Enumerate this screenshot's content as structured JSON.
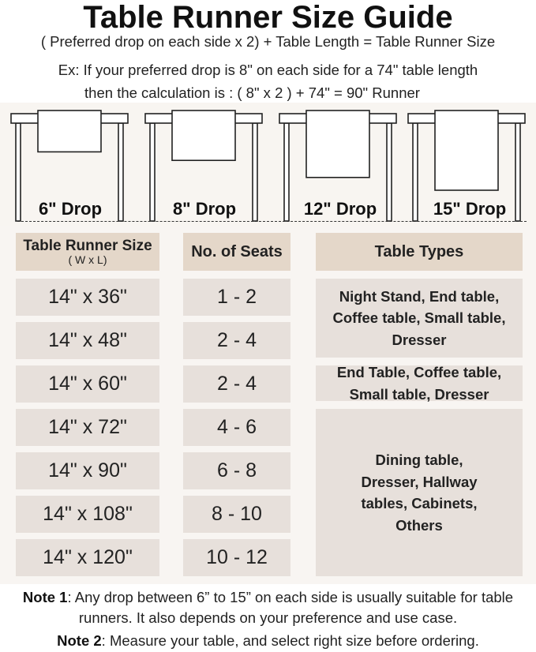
{
  "title": "Table Runner Size Guide",
  "formula": "( Preferred drop on each side x 2) + Table Length = Table Runner Size",
  "example_line1": "Ex: If your preferred drop is 8\" on each side for a 74\" table length",
  "example_line2": "then the calculation is : ( 8\" x 2 ) + 74\" = 90\" Runner",
  "drops": [
    {
      "label": "6\" Drop",
      "inches": 6
    },
    {
      "label": "8\" Drop",
      "inches": 8
    },
    {
      "label": "12\" Drop",
      "inches": 12
    },
    {
      "label": "15\" Drop",
      "inches": 15
    }
  ],
  "table": {
    "headers": {
      "size": "Table Runner Size",
      "size_sub": "( W x L)",
      "seats": "No. of Seats",
      "types": "Table Types"
    },
    "rows": [
      {
        "size": "14\" x 36\"",
        "seats": "1 - 2"
      },
      {
        "size": "14\" x 48\"",
        "seats": "2 - 4"
      },
      {
        "size": "14\" x 60\"",
        "seats": "2 - 4"
      },
      {
        "size": "14\" x 72\"",
        "seats": "4 - 6"
      },
      {
        "size": "14\" x 90\"",
        "seats": "6 - 8"
      },
      {
        "size": "14\" x 108\"",
        "seats": "8 - 10"
      },
      {
        "size": "14\" x 120\"",
        "seats": "10 - 12"
      }
    ],
    "types": [
      "Night Stand, End table, Coffee table, Small table, Dresser",
      "End Table, Coffee table, Small table, Dresser",
      "Dining table, Dresser, Hallway tables, Cabinets, Others"
    ]
  },
  "notes": [
    {
      "label": "Note 1",
      "text": ": Any drop between 6” to 15” on each side is usually suitable for table runners. It also depends on your preference and use case."
    },
    {
      "label": "Note 2",
      "text": ": Measure your table, and select right size before ordering."
    }
  ],
  "colors": {
    "header_cell": "#e4d7c9",
    "cell": "#e7e0db",
    "background": "#f8f5f2"
  }
}
